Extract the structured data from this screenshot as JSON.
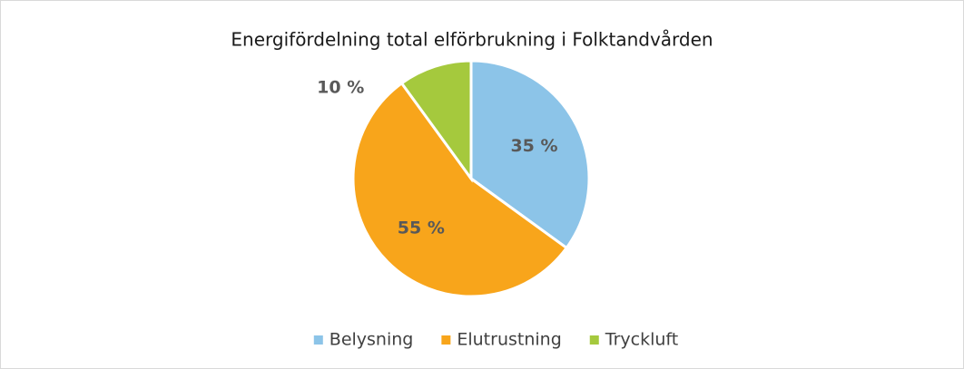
{
  "chart_data": {
    "type": "pie",
    "title": "Energifördelning total elförbrukning i Folktandvården",
    "categories": [
      "Belysning",
      "Elutrustning",
      "Tryckluft"
    ],
    "values": [
      35,
      55,
      10
    ],
    "value_labels": [
      "35 %",
      "55 %",
      "10 %"
    ],
    "colors": [
      "#8cc4e8",
      "#f8a51b",
      "#a5c93d"
    ],
    "legend": "bottom"
  }
}
